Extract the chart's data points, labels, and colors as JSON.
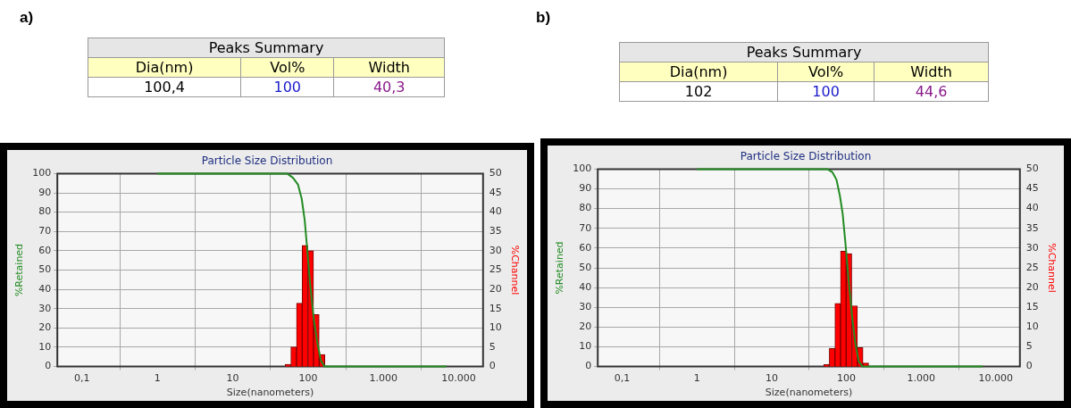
{
  "chart_data": [
    {
      "type": "line",
      "title": "Particle Size Distribution",
      "xlabel": "Size(nanometers)",
      "ylabel": "%Retained",
      "y2label": "%Channel",
      "annotations": [
        "a)",
        "Peaks Summary",
        "Dia(nm)",
        "Vol%",
        "Width",
        "100,4",
        "100",
        "40,3"
      ],
      "log": "x",
      "grid": true,
      "legend": false,
      "xlim": [
        0.047,
        21000
      ],
      "xticks": [
        {
          "value": 0.1,
          "label": "0,1"
        },
        1,
        10,
        100,
        {
          "value": 1000,
          "label": "1.000"
        },
        {
          "value": 10000,
          "label": "10.000"
        }
      ],
      "ylim": [
        0,
        100
      ],
      "yticks": [
        0,
        10,
        20,
        30,
        40,
        50,
        60,
        70,
        80,
        90,
        100
      ],
      "y2lim": [
        0,
        50
      ],
      "y2ticks": [
        0,
        5,
        10,
        15,
        20,
        25,
        30,
        35,
        40,
        45,
        50
      ],
      "series": [
        {
          "type": "histogram",
          "axis": "y2",
          "color": "#ff0000",
          "bins": [
            49.6,
            59,
            70.2,
            83.4,
            99.2,
            118,
            140.3,
            166.9
          ],
          "values": [
            0.6,
            5.1,
            16.4,
            31.4,
            30,
            13.5,
            3.1
          ]
        },
        {
          "color": "#228b22",
          "x": [
            1,
            52.7,
            63,
            73.6,
            82.2,
            90,
            97,
            106,
            118.6,
            132.5,
            148,
            165.6,
            6850
          ],
          "values": [
            100,
            100,
            97.8,
            94.2,
            87,
            76.1,
            61.6,
            43.4,
            25.1,
            12.4,
            3.1,
            0,
            0
          ]
        }
      ]
    },
    {
      "type": "line",
      "title": "Particle Size Distribution",
      "xlabel": "Size(nanometers)",
      "ylabel": "%Retained",
      "y2label": "%Channel",
      "annotations": [
        "b)",
        "Peaks Summary",
        "Dia(nm)",
        "Vol%",
        "Width",
        "102",
        "100",
        "44,6"
      ],
      "log": "x",
      "grid": true,
      "legend": false,
      "xlim": [
        0.047,
        21000
      ],
      "xticks": [
        {
          "value": 0.1,
          "label": "0,1"
        },
        1,
        10,
        100,
        {
          "value": 1000,
          "label": "1.000"
        },
        {
          "value": 10000,
          "label": "10.000"
        }
      ],
      "ylim": [
        0,
        100
      ],
      "yticks": [
        0,
        10,
        20,
        30,
        40,
        50,
        60,
        70,
        80,
        90,
        100
      ],
      "y2lim": [
        0,
        50
      ],
      "y2ticks": [
        0,
        5,
        10,
        15,
        20,
        25,
        30,
        35,
        40,
        45,
        50
      ],
      "series": [
        {
          "type": "histogram",
          "axis": "y2",
          "color": "#ff0000",
          "bins": [
            49.6,
            59,
            70.2,
            83.4,
            99.2,
            118,
            140.3,
            166.9,
            198.5
          ],
          "values": [
            0.5,
            4.6,
            16,
            29.2,
            28.6,
            15.4,
            4.8,
            0.9
          ]
        },
        {
          "color": "#228b22",
          "x": [
            1,
            55.5,
            65,
            73.6,
            81.8,
            89.1,
            96.9,
            106.5,
            118.3,
            131.5,
            146.3,
            164,
            6680
          ],
          "values": [
            100,
            100,
            98.4,
            94.7,
            86.5,
            77.4,
            62.8,
            44.6,
            26.4,
            11.8,
            2.7,
            0,
            0
          ]
        }
      ]
    }
  ]
}
